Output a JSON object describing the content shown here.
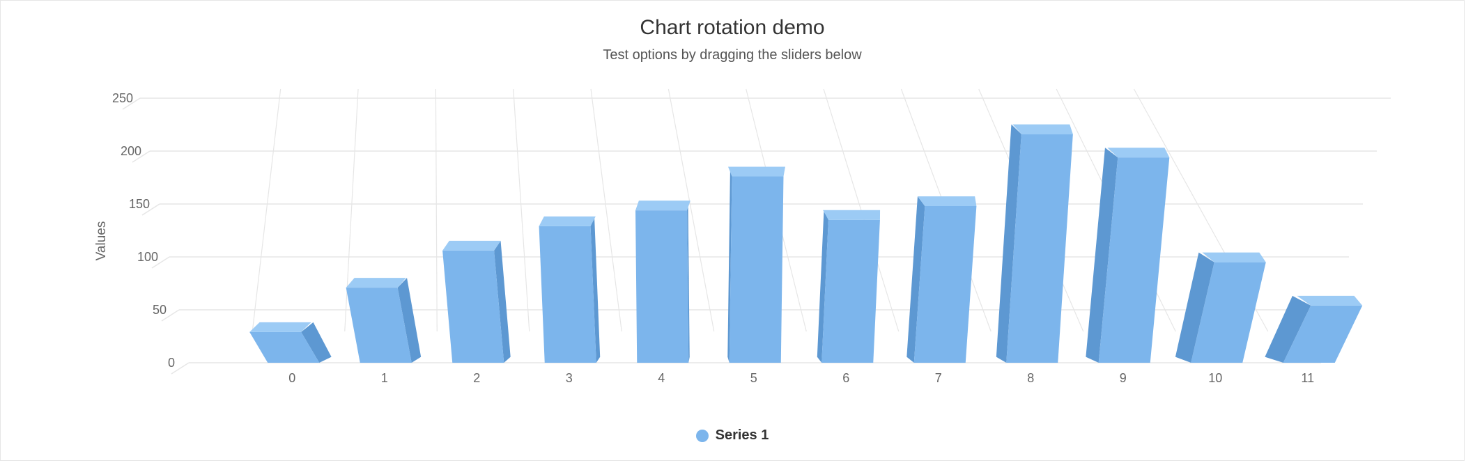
{
  "chart_data": {
    "type": "bar",
    "title": "Chart rotation demo",
    "subtitle": "Test options by dragging the sliders below",
    "ylabel": "Values",
    "xlabel": "",
    "categories": [
      "0",
      "1",
      "2",
      "3",
      "4",
      "5",
      "6",
      "7",
      "8",
      "9",
      "10",
      "11"
    ],
    "series": [
      {
        "name": "Series 1",
        "values": [
          29,
          71,
          106,
          129,
          144,
          176,
          135,
          148,
          216,
          194,
          95,
          54
        ]
      }
    ],
    "ylim": [
      0,
      250
    ],
    "yticks": [
      0,
      50,
      100,
      150,
      200,
      250
    ],
    "grid": true,
    "legend_position": "bottom",
    "style": "3d-column",
    "colors": {
      "bar_front": "#7cb5ec",
      "bar_side": "#5d98d2",
      "bar_top": "#9ccbf5",
      "grid": "#e6e6e6",
      "axis_text": "#666666",
      "title": "#333333"
    }
  }
}
